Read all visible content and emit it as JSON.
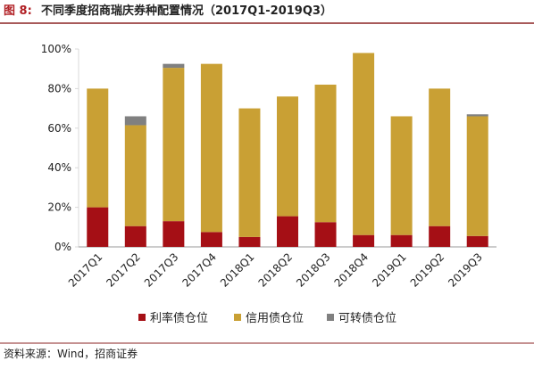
{
  "chart_data": {
    "type": "stacked-bar",
    "figure_label": "图 8:",
    "title": "不同季度招商瑞庆券种配置情况（2017Q1-2019Q3）",
    "source": "资料来源：Wind，招商证券",
    "categories": [
      "2017Q1",
      "2017Q2",
      "2017Q3",
      "2017Q4",
      "2018Q1",
      "2018Q2",
      "2018Q3",
      "2018Q4",
      "2019Q1",
      "2019Q2",
      "2019Q3"
    ],
    "series": [
      {
        "name": "利率债仓位",
        "color": "#a50f15",
        "values": [
          20,
          10.5,
          13,
          7.5,
          5,
          15.5,
          12.5,
          6,
          6,
          10.5,
          5.5
        ]
      },
      {
        "name": "信用债仓位",
        "color": "#c9a034",
        "values": [
          60,
          51,
          77.5,
          85,
          65,
          60.5,
          69.5,
          92,
          60,
          69.5,
          60.5
        ]
      },
      {
        "name": "可转债仓位",
        "color": "#808080",
        "values": [
          0,
          4.5,
          2,
          0,
          0,
          0,
          0,
          0,
          0,
          0,
          1
        ]
      }
    ],
    "ylim": [
      0,
      100
    ],
    "yticks": [
      {
        "value": 0,
        "label": "0%"
      },
      {
        "value": 20,
        "label": "20%"
      },
      {
        "value": 40,
        "label": "40%"
      },
      {
        "value": 60,
        "label": "60%"
      },
      {
        "value": 80,
        "label": "80%"
      },
      {
        "value": 100,
        "label": "100%"
      }
    ],
    "legend": "bottom"
  }
}
